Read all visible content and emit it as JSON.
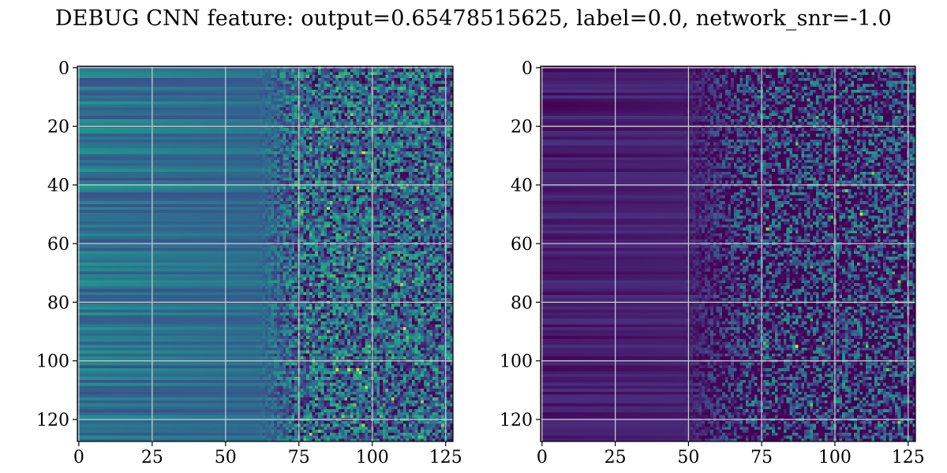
{
  "title": "DEBUG CNN feature: output=0.65478515625, label=0.0, network_snr=-1.0",
  "chart_data": [
    {
      "type": "heatmap",
      "colormap": "viridis",
      "rows": 128,
      "cols": 128,
      "xlim": [
        0,
        127
      ],
      "ylim": [
        0,
        127
      ],
      "y_inverted": true,
      "grid": true,
      "xticks": [
        0,
        25,
        50,
        75,
        100,
        125
      ],
      "yticks": [
        0,
        20,
        40,
        60,
        80,
        100,
        120
      ],
      "xtick_labels": [
        "0",
        "25",
        "50",
        "75",
        "100",
        "125"
      ],
      "ytick_labels": [
        "0",
        "20",
        "40",
        "60",
        "80",
        "100",
        "120"
      ],
      "profile": {
        "smooth_until_col": 60,
        "noise_from_col": 75,
        "base_level_left": 0.38,
        "base_level_right": 0.3,
        "row_stripe_strength": 0.15,
        "noise_strength": 0.35
      },
      "hotspots": [
        {
          "row": 103,
          "col": 88,
          "value": 0.95
        },
        {
          "row": 103,
          "col": 92,
          "value": 0.9
        },
        {
          "row": 103,
          "col": 95,
          "value": 0.92
        },
        {
          "row": 41,
          "col": 95,
          "value": 0.85
        },
        {
          "row": 65,
          "col": 93,
          "value": 0.8
        },
        {
          "row": 57,
          "col": 91,
          "value": 0.75
        },
        {
          "row": 65,
          "col": 104,
          "value": 0.78
        }
      ]
    },
    {
      "type": "heatmap",
      "colormap": "viridis",
      "rows": 128,
      "cols": 128,
      "xlim": [
        0,
        127
      ],
      "ylim": [
        0,
        127
      ],
      "y_inverted": true,
      "grid": true,
      "xticks": [
        0,
        25,
        50,
        75,
        100,
        125
      ],
      "yticks": [
        0,
        20,
        40,
        60,
        80,
        100,
        120
      ],
      "xtick_labels": [
        "0",
        "25",
        "50",
        "75",
        "100",
        "125"
      ],
      "ytick_labels": [
        "0",
        "20",
        "40",
        "60",
        "80",
        "100",
        "120"
      ],
      "profile": {
        "smooth_until_col": 48,
        "noise_from_col": 72,
        "base_level_left": 0.08,
        "base_level_right": 0.12,
        "row_stripe_strength": 0.08,
        "noise_strength": 0.45
      },
      "hotspots": [
        {
          "row": 95,
          "col": 87,
          "value": 1.0
        },
        {
          "row": 50,
          "col": 109,
          "value": 0.95
        },
        {
          "row": 95,
          "col": 111,
          "value": 0.8
        },
        {
          "row": 115,
          "col": 92,
          "value": 0.75
        },
        {
          "row": 68,
          "col": 92,
          "value": 0.7
        },
        {
          "row": 15,
          "col": 122,
          "value": 0.7
        }
      ]
    }
  ]
}
